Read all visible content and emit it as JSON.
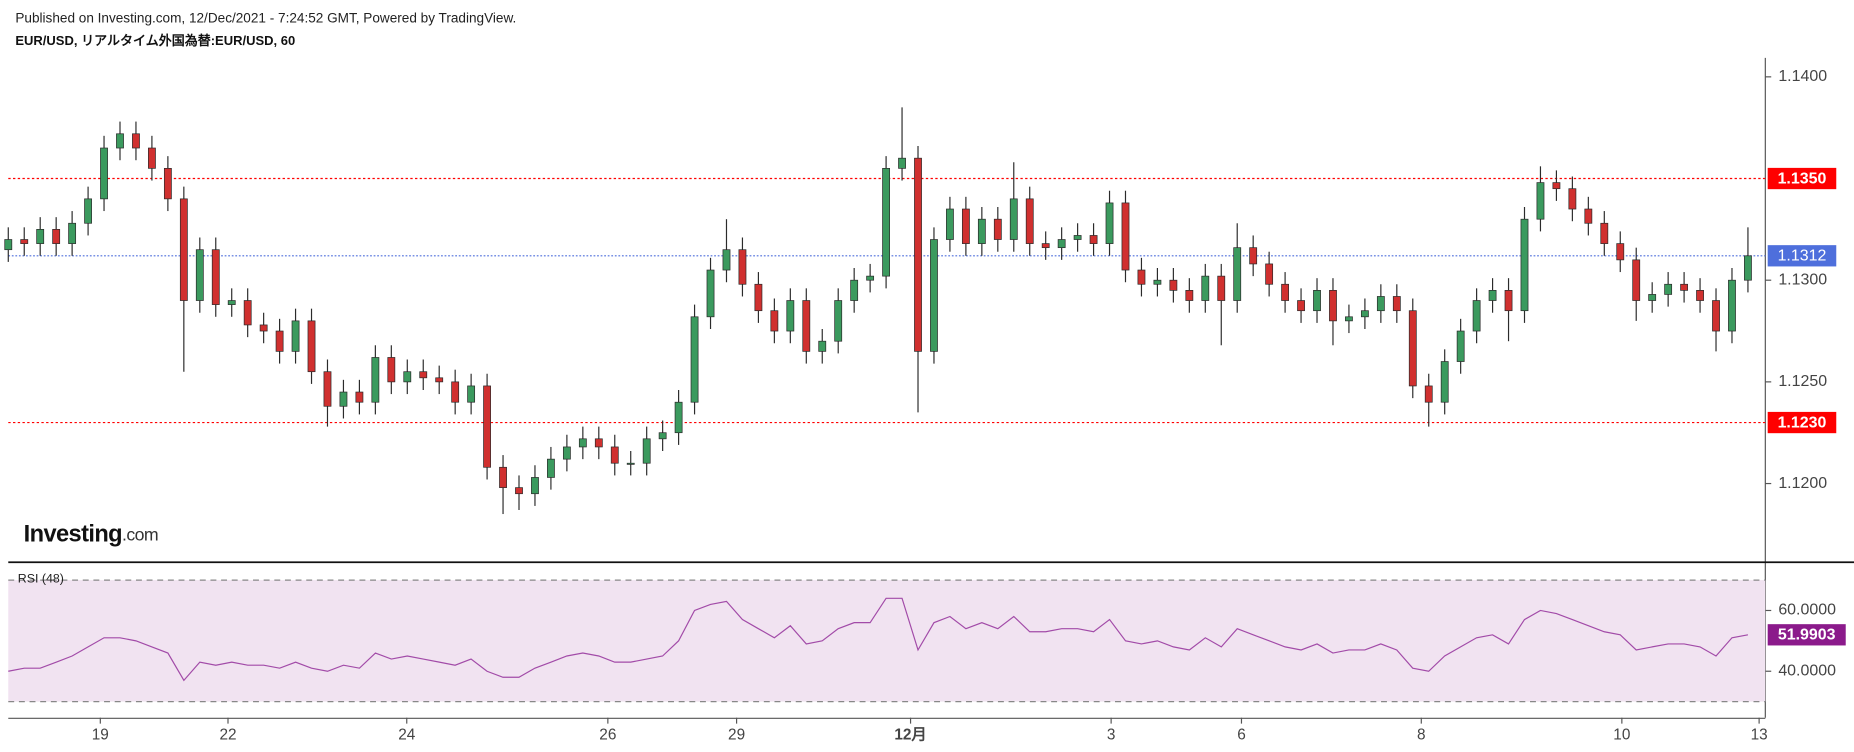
{
  "header": {
    "published": "Published on Investing.com, 12/Dec/2021 - 7:24:52 GMT, Powered by TradingView."
  },
  "logo": {
    "main": "Investing",
    "suffix": ".com"
  },
  "chart_data": {
    "type": "candlestick",
    "title": "EUR/USD, リアルタイム外国為替:EUR/USD, 60",
    "x": [
      0,
      3,
      6,
      9,
      12,
      15,
      18,
      21,
      24,
      27,
      30,
      33,
      36,
      39,
      42,
      45,
      48,
      51,
      54,
      57,
      60,
      63,
      66,
      69,
      72,
      75,
      78,
      81,
      84,
      87,
      90,
      93,
      96,
      99,
      102,
      105,
      108,
      111,
      114,
      117,
      120,
      123,
      126,
      129,
      132,
      135,
      138,
      141,
      144,
      147,
      150,
      153,
      156,
      159,
      162,
      165,
      168,
      171,
      174,
      177,
      180,
      183,
      186,
      189,
      192,
      195,
      198,
      201,
      204,
      207,
      210,
      213,
      216,
      219,
      222,
      225,
      228,
      231,
      234,
      237,
      240,
      243,
      246,
      249,
      252,
      255,
      258,
      261,
      264,
      267,
      270,
      273,
      276,
      279,
      282,
      285,
      288,
      291,
      294,
      297,
      300,
      303,
      306,
      309,
      312,
      315,
      318,
      321,
      324,
      327
    ],
    "open": [
      1.1315,
      1.132,
      1.1318,
      1.1325,
      1.1318,
      1.1328,
      1.134,
      1.1365,
      1.1372,
      1.1365,
      1.1355,
      1.134,
      1.129,
      1.1315,
      1.1288,
      1.129,
      1.1278,
      1.1275,
      1.1265,
      1.128,
      1.1255,
      1.1238,
      1.1245,
      1.124,
      1.1262,
      1.125,
      1.1255,
      1.1252,
      1.125,
      1.124,
      1.1248,
      1.1208,
      1.1198,
      1.1195,
      1.1203,
      1.1212,
      1.1218,
      1.1222,
      1.1218,
      1.121,
      1.121,
      1.1222,
      1.1225,
      1.124,
      1.1282,
      1.1305,
      1.1315,
      1.1298,
      1.1285,
      1.1275,
      1.129,
      1.1265,
      1.127,
      1.129,
      1.13,
      1.1302,
      1.1355,
      1.136,
      1.1265,
      1.132,
      1.1335,
      1.1318,
      1.133,
      1.132,
      1.134,
      1.1318,
      1.1316,
      1.132,
      1.1322,
      1.1318,
      1.1338,
      1.1305,
      1.1298,
      1.13,
      1.1295,
      1.129,
      1.1302,
      1.129,
      1.1316,
      1.1308,
      1.1298,
      1.129,
      1.1285,
      1.1295,
      1.128,
      1.1282,
      1.1285,
      1.1292,
      1.1285,
      1.1248,
      1.124,
      1.126,
      1.1275,
      1.129,
      1.1295,
      1.1285,
      1.133,
      1.1348,
      1.1345,
      1.1335,
      1.1328,
      1.1318,
      1.131,
      1.129,
      1.1293,
      1.1298,
      1.1295,
      1.129,
      1.1275,
      1.13
    ],
    "high": [
      1.1326,
      1.1326,
      1.1331,
      1.1331,
      1.1334,
      1.1346,
      1.1371,
      1.1378,
      1.1378,
      1.1371,
      1.1361,
      1.1346,
      1.1321,
      1.1321,
      1.1296,
      1.1296,
      1.1284,
      1.1281,
      1.1286,
      1.1286,
      1.1261,
      1.1251,
      1.1251,
      1.1268,
      1.1268,
      1.1261,
      1.1261,
      1.1258,
      1.1256,
      1.1254,
      1.1254,
      1.1214,
      1.1204,
      1.1209,
      1.1218,
      1.1224,
      1.1228,
      1.1228,
      1.1224,
      1.1216,
      1.1228,
      1.1231,
      1.1246,
      1.1288,
      1.1311,
      1.133,
      1.1321,
      1.1304,
      1.1291,
      1.1296,
      1.1296,
      1.1276,
      1.1296,
      1.1306,
      1.1308,
      1.1361,
      1.1385,
      1.1366,
      1.1326,
      1.1341,
      1.1341,
      1.1336,
      1.1336,
      1.1358,
      1.1346,
      1.1324,
      1.1326,
      1.1328,
      1.1328,
      1.1344,
      1.1344,
      1.1311,
      1.1306,
      1.1306,
      1.1301,
      1.1308,
      1.1308,
      1.1328,
      1.1322,
      1.1314,
      1.1304,
      1.1296,
      1.1301,
      1.1301,
      1.1288,
      1.1291,
      1.1298,
      1.1298,
      1.1291,
      1.1254,
      1.1266,
      1.1281,
      1.1296,
      1.1301,
      1.1301,
      1.1336,
      1.1356,
      1.1354,
      1.1351,
      1.1341,
      1.1334,
      1.1324,
      1.1316,
      1.1299,
      1.1304,
      1.1304,
      1.1301,
      1.1296,
      1.1306,
      1.1326
    ],
    "low": [
      1.1309,
      1.1312,
      1.1312,
      1.1312,
      1.1312,
      1.1322,
      1.1334,
      1.1359,
      1.1359,
      1.1349,
      1.1334,
      1.1255,
      1.1284,
      1.1282,
      1.1282,
      1.1272,
      1.1269,
      1.1259,
      1.1259,
      1.1249,
      1.1228,
      1.1232,
      1.1234,
      1.1234,
      1.1244,
      1.1244,
      1.1246,
      1.1244,
      1.1234,
      1.1234,
      1.1202,
      1.1185,
      1.1187,
      1.1189,
      1.1197,
      1.1206,
      1.1212,
      1.1212,
      1.1204,
      1.1204,
      1.1204,
      1.1216,
      1.1219,
      1.1234,
      1.1276,
      1.1299,
      1.1292,
      1.1279,
      1.1269,
      1.1269,
      1.1259,
      1.1259,
      1.1264,
      1.1284,
      1.1294,
      1.1296,
      1.1349,
      1.1235,
      1.1259,
      1.1314,
      1.1312,
      1.1312,
      1.1314,
      1.1314,
      1.1312,
      1.131,
      1.131,
      1.1314,
      1.1312,
      1.1312,
      1.1299,
      1.1292,
      1.1292,
      1.1289,
      1.1284,
      1.1284,
      1.1268,
      1.1284,
      1.1302,
      1.1292,
      1.1284,
      1.1279,
      1.1279,
      1.1268,
      1.1274,
      1.1276,
      1.1279,
      1.1279,
      1.1242,
      1.1228,
      1.1234,
      1.1254,
      1.1269,
      1.1284,
      1.127,
      1.1279,
      1.1324,
      1.1339,
      1.1329,
      1.1322,
      1.1312,
      1.1304,
      1.128,
      1.1284,
      1.1287,
      1.1289,
      1.1284,
      1.1265,
      1.1269,
      1.1294
    ],
    "close": [
      1.132,
      1.1318,
      1.1325,
      1.1318,
      1.1328,
      1.134,
      1.1365,
      1.1372,
      1.1365,
      1.1355,
      1.134,
      1.129,
      1.1315,
      1.1288,
      1.129,
      1.1278,
      1.1275,
      1.1265,
      1.128,
      1.1255,
      1.1238,
      1.1245,
      1.124,
      1.1262,
      1.125,
      1.1255,
      1.1252,
      1.125,
      1.124,
      1.1248,
      1.1208,
      1.1198,
      1.1195,
      1.1203,
      1.1212,
      1.1218,
      1.1222,
      1.1218,
      1.121,
      1.121,
      1.1222,
      1.1225,
      1.124,
      1.1282,
      1.1305,
      1.1315,
      1.1298,
      1.1285,
      1.1275,
      1.129,
      1.1265,
      1.127,
      1.129,
      1.13,
      1.1302,
      1.1355,
      1.136,
      1.1265,
      1.132,
      1.1335,
      1.1318,
      1.133,
      1.132,
      1.134,
      1.1318,
      1.1316,
      1.132,
      1.1322,
      1.1318,
      1.1338,
      1.1305,
      1.1298,
      1.13,
      1.1295,
      1.129,
      1.1302,
      1.129,
      1.1316,
      1.1308,
      1.1298,
      1.129,
      1.1285,
      1.1295,
      1.128,
      1.1282,
      1.1285,
      1.1292,
      1.1285,
      1.1248,
      1.124,
      1.126,
      1.1275,
      1.129,
      1.1295,
      1.1285,
      1.133,
      1.1348,
      1.1345,
      1.1335,
      1.1328,
      1.1318,
      1.131,
      1.129,
      1.1293,
      1.1298,
      1.1295,
      1.129,
      1.1275,
      1.13,
      1.1312
    ],
    "up_color": "#3b9a5e",
    "down_color": "#d0302f",
    "xlim": [
      0,
      329.6
    ],
    "xticks": [
      {
        "value": 17.3,
        "label": "19"
      },
      {
        "value": 41.3,
        "label": "22"
      },
      {
        "value": 74.9,
        "label": "24"
      },
      {
        "value": 112.7,
        "label": "26"
      },
      {
        "value": 136.9,
        "label": "29"
      },
      {
        "value": 169.6,
        "label": "12月"
      },
      {
        "value": 207.3,
        "label": "3"
      },
      {
        "value": 231.8,
        "label": "6"
      },
      {
        "value": 265.6,
        "label": "8"
      },
      {
        "value": 303.3,
        "label": "10"
      },
      {
        "value": 329.1,
        "label": "13"
      }
    ],
    "ylim": [
      1.11616,
      1.14093
    ],
    "yticks": [
      {
        "value": 1.12,
        "label": "1.1200"
      },
      {
        "value": 1.125,
        "label": "1.1250"
      },
      {
        "value": 1.13,
        "label": "1.1300"
      },
      {
        "value": 1.14,
        "label": "1.1400"
      }
    ],
    "levels": [
      {
        "value": 1.135,
        "label": "1.1350",
        "color": "#ff0000"
      },
      {
        "value": 1.123,
        "label": "1.1230",
        "color": "#ff0000"
      }
    ],
    "last_price_color": "#4e6fdc",
    "rsi": {
      "name": "RSI (48)",
      "color": "#a24ba8",
      "label_color": "#8b1a8b",
      "band_color": "#f1e3f1",
      "values": [
        40,
        41,
        41,
        43,
        45,
        48,
        51,
        51,
        50,
        48,
        46,
        37,
        43,
        42,
        43,
        42,
        42,
        41,
        43,
        41,
        40,
        42,
        41,
        46,
        44,
        45,
        44,
        43,
        42,
        44,
        40,
        38,
        38,
        41,
        43,
        45,
        46,
        45,
        43,
        43,
        44,
        45,
        50,
        60,
        62,
        63,
        57,
        54,
        51,
        55,
        49,
        50,
        54,
        56,
        56,
        64,
        64,
        47,
        56,
        58,
        54,
        56,
        54,
        58,
        53,
        53,
        54,
        54,
        53,
        57,
        50,
        49,
        50,
        48,
        47,
        51,
        48,
        54,
        52,
        50,
        48,
        47,
        49,
        46,
        47,
        47,
        49,
        47,
        41,
        40,
        45,
        48,
        51,
        52,
        49,
        57,
        60,
        59,
        57,
        55,
        53,
        52,
        47,
        48,
        49,
        49,
        48,
        45,
        51,
        51.9903
      ],
      "ylim": [
        24.7,
        75.3
      ],
      "yticks": [
        {
          "value": 40,
          "label": "40.0000"
        },
        {
          "value": 60,
          "label": "60.0000"
        }
      ],
      "bands": [
        30,
        70
      ]
    }
  }
}
